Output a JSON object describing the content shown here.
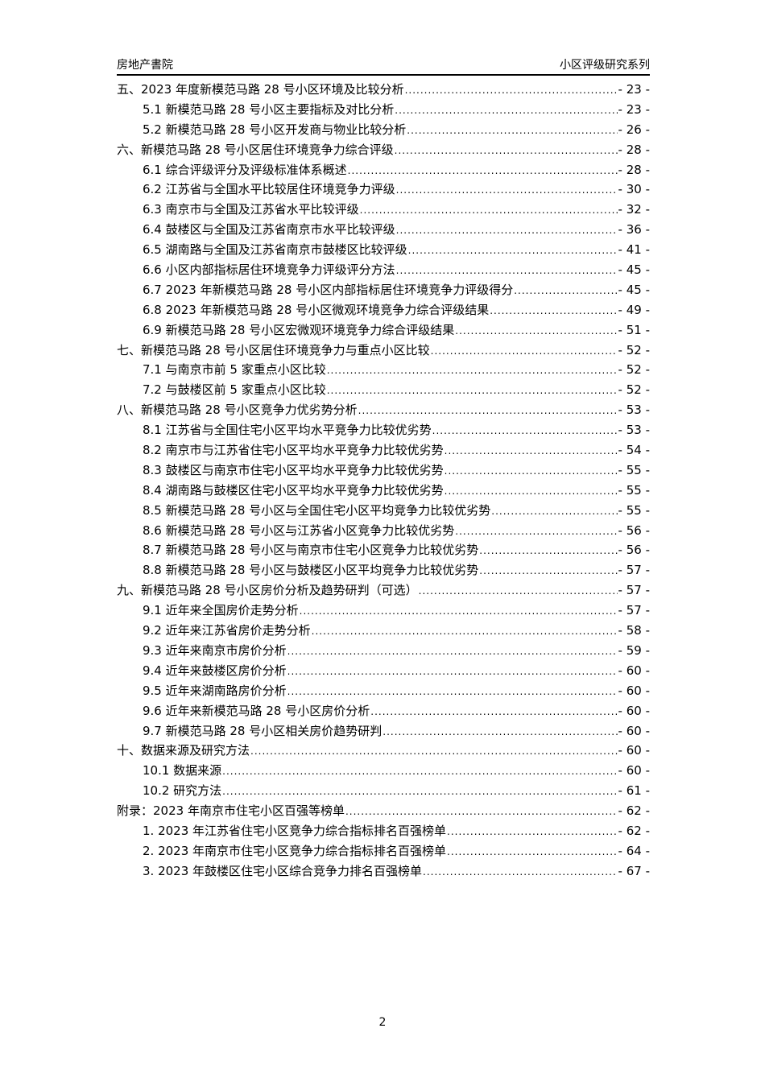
{
  "header": {
    "left": "房地产書院",
    "right": "小区评级研究系列"
  },
  "toc": [
    {
      "level": 1,
      "title": "五、2023 年度新模范马路 28 号小区环境及比较分析",
      "page": "- 23 -"
    },
    {
      "level": 2,
      "title": "5.1  新模范马路 28 号小区主要指标及对比分析",
      "page": "- 23 -"
    },
    {
      "level": 2,
      "title": "5.2  新模范马路 28 号小区开发商与物业比较分析",
      "page": "- 26 -"
    },
    {
      "level": 1,
      "title": "六、新模范马路 28 号小区居住环境竞争力综合评级",
      "page": "- 28 -"
    },
    {
      "level": 2,
      "title": "6.1  综合评级评分及评级标准体系概述",
      "page": "- 28 -"
    },
    {
      "level": 2,
      "title": "6.2  江苏省与全国水平比较居住环境竞争力评级",
      "page": "- 30 -"
    },
    {
      "level": 2,
      "title": "6.3  南京市与全国及江苏省水平比较评级",
      "page": "- 32 -"
    },
    {
      "level": 2,
      "title": "6.4  鼓楼区与全国及江苏省南京市水平比较评级",
      "page": "- 36 -"
    },
    {
      "level": 2,
      "title": "6.5  湖南路与全国及江苏省南京市鼓楼区比较评级",
      "page": "- 41 -"
    },
    {
      "level": 2,
      "title": "6.6  小区内部指标居住环境竞争力评级评分方法",
      "page": "- 45 -"
    },
    {
      "level": 2,
      "title": "6.7  2023 年新模范马路 28 号小区内部指标居住环境竞争力评级得分",
      "page": "- 45 -"
    },
    {
      "level": 2,
      "title": "6.8  2023 年新模范马路 28 号小区微观环境竞争力综合评级结果",
      "page": "- 49 -"
    },
    {
      "level": 2,
      "title": "6.9  新模范马路 28 号小区宏微观环境竞争力综合评级结果",
      "page": "- 51 -"
    },
    {
      "level": 1,
      "title": "七、新模范马路 28 号小区居住环境竞争力与重点小区比较",
      "page": "- 52 -"
    },
    {
      "level": 2,
      "title": "7.1  与南京市前 5 家重点小区比较",
      "page": "- 52 -"
    },
    {
      "level": 2,
      "title": "7.2  与鼓楼区前 5 家重点小区比较",
      "page": "- 52 -"
    },
    {
      "level": 1,
      "title": "八、新模范马路 28 号小区竞争力优劣势分析",
      "page": "- 53 -"
    },
    {
      "level": 2,
      "title": "8.1  江苏省与全国住宅小区平均水平竞争力比较优劣势",
      "page": "- 53 -"
    },
    {
      "level": 2,
      "title": "8.2  南京市与江苏省住宅小区平均水平竞争力比较优劣势",
      "page": "- 54 -"
    },
    {
      "level": 2,
      "title": "8.3  鼓楼区与南京市住宅小区平均水平竞争力比较优劣势",
      "page": "- 55 -"
    },
    {
      "level": 2,
      "title": "8.4  湖南路与鼓楼区住宅小区平均水平竞争力比较优劣势",
      "page": "- 55 -"
    },
    {
      "level": 2,
      "title": "8.5  新模范马路 28 号小区与全国住宅小区平均竞争力比较优劣势",
      "page": "- 55 -"
    },
    {
      "level": 2,
      "title": "8.6  新模范马路 28 号小区与江苏省小区竞争力比较优劣势",
      "page": "- 56 -"
    },
    {
      "level": 2,
      "title": "8.7  新模范马路 28 号小区与南京市住宅小区竞争力比较优劣势",
      "page": "- 56 -"
    },
    {
      "level": 2,
      "title": "8.8  新模范马路 28 号小区与鼓楼区小区平均竞争力比较优劣势",
      "page": "- 57 -"
    },
    {
      "level": 1,
      "title": "九、新模范马路 28 号小区房价分析及趋势研判（可选）",
      "page": "- 57 -"
    },
    {
      "level": 2,
      "title": "9.1  近年来全国房价走势分析",
      "page": "- 57 -"
    },
    {
      "level": 2,
      "title": "9.2  近年来江苏省房价走势分析",
      "page": "- 58 -"
    },
    {
      "level": 2,
      "title": "9.3  近年来南京市房价分析",
      "page": "- 59 -"
    },
    {
      "level": 2,
      "title": "9.4  近年来鼓楼区房价分析",
      "page": "- 60 -"
    },
    {
      "level": 2,
      "title": "9.5  近年来湖南路房价分析",
      "page": "- 60 -"
    },
    {
      "level": 2,
      "title": "9.6  近年来新模范马路 28 号小区房价分析",
      "page": "- 60 -"
    },
    {
      "level": 2,
      "title": "9.7  新模范马路 28 号小区相关房价趋势研判",
      "page": "- 60 -"
    },
    {
      "level": 1,
      "title": "十、数据来源及研究方法",
      "page": "- 60 -"
    },
    {
      "level": 2,
      "title": "10.1  数据来源",
      "page": "- 60 -"
    },
    {
      "level": 2,
      "title": "10.2  研究方法",
      "page": "- 61 -"
    },
    {
      "level": 1,
      "title": "附录：2023 年南京市住宅小区百强等榜单",
      "page": "- 62 -"
    },
    {
      "level": 2,
      "title": "1.  2023 年江苏省住宅小区竞争力综合指标排名百强榜单",
      "page": "- 62 -"
    },
    {
      "level": 2,
      "title": "2.  2023 年南京市住宅小区竞争力综合指标排名百强榜单",
      "page": "- 64 -"
    },
    {
      "level": 2,
      "title": "3.  2023 年鼓楼区住宅小区综合竞争力排名百强榜单",
      "page": "- 67 -"
    }
  ],
  "footer": {
    "page_number": "2"
  }
}
